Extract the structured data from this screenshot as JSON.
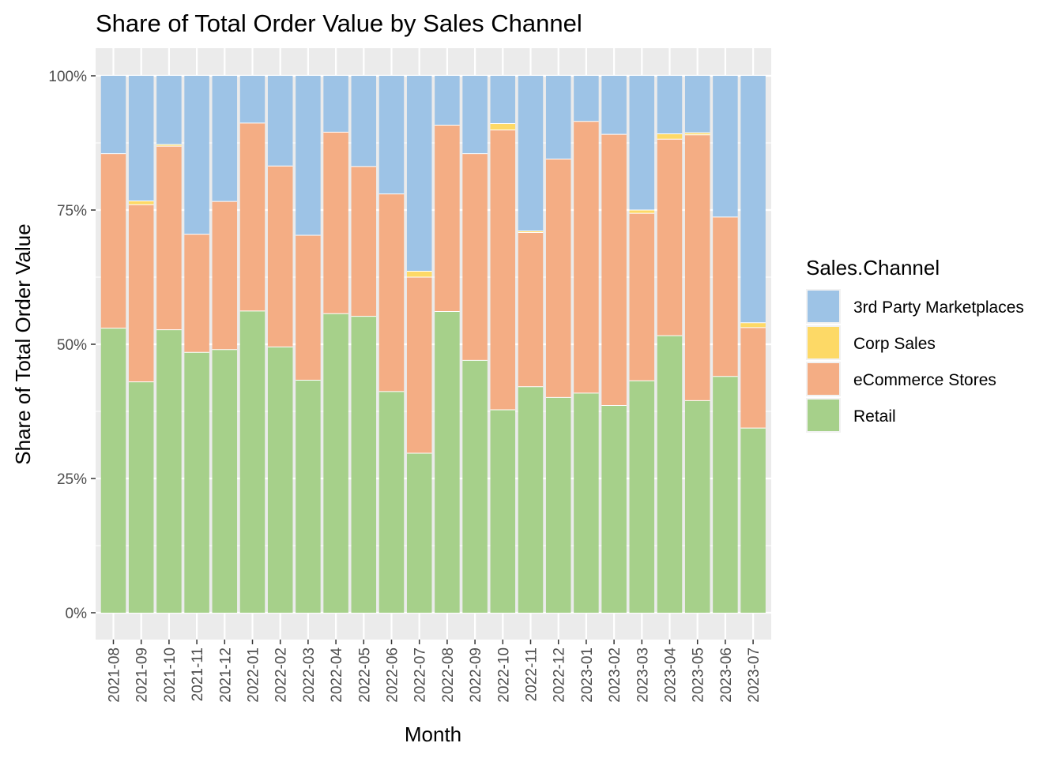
{
  "chart_data": {
    "type": "bar",
    "stacked": "percent",
    "title": "Share of Total Order Value by Sales Channel",
    "xlabel": "Month",
    "ylabel": "Share of Total Order Value",
    "ylim": [
      0,
      1
    ],
    "yticks": [
      "0%",
      "25%",
      "50%",
      "75%",
      "100%"
    ],
    "grid": true,
    "legend": {
      "title": "Sales.Channel",
      "position": "right"
    },
    "categories": [
      "2021-08",
      "2021-09",
      "2021-10",
      "2021-11",
      "2021-12",
      "2022-01",
      "2022-02",
      "2022-03",
      "2022-04",
      "2022-05",
      "2022-06",
      "2022-07",
      "2022-08",
      "2022-09",
      "2022-10",
      "2022-11",
      "2022-12",
      "2023-01",
      "2023-02",
      "2023-03",
      "2023-04",
      "2023-05",
      "2023-06",
      "2023-07"
    ],
    "series": [
      {
        "name": "Retail",
        "color": "#a6d08a",
        "values": [
          0.53,
          0.43,
          0.527,
          0.485,
          0.49,
          0.562,
          0.495,
          0.433,
          0.557,
          0.552,
          0.412,
          0.297,
          0.561,
          0.47,
          0.378,
          0.421,
          0.401,
          0.409,
          0.386,
          0.432,
          0.516,
          0.395,
          0.44,
          0.344
        ]
      },
      {
        "name": "eCommerce Stores",
        "color": "#f4ad84",
        "values": [
          0.325,
          0.33,
          0.342,
          0.22,
          0.276,
          0.35,
          0.337,
          0.27,
          0.338,
          0.279,
          0.368,
          0.328,
          0.347,
          0.385,
          0.521,
          0.287,
          0.444,
          0.506,
          0.505,
          0.312,
          0.366,
          0.495,
          0.297,
          0.187
        ]
      },
      {
        "name": "Corp Sales",
        "color": "#fdd966",
        "values": [
          0,
          0.007,
          0.003,
          0,
          0,
          0,
          0,
          0,
          0,
          0,
          0,
          0.011,
          0,
          0,
          0.012,
          0.003,
          0,
          0,
          0,
          0.006,
          0.01,
          0.004,
          0,
          0.009
        ]
      },
      {
        "name": "3rd Party Marketplaces",
        "color": "#9dc3e6",
        "values": [
          0.145,
          0.233,
          0.128,
          0.295,
          0.234,
          0.088,
          0.168,
          0.297,
          0.105,
          0.169,
          0.22,
          0.364,
          0.092,
          0.145,
          0.089,
          0.289,
          0.155,
          0.085,
          0.109,
          0.25,
          0.108,
          0.106,
          0.263,
          0.46
        ]
      }
    ],
    "legend_order": [
      "3rd Party Marketplaces",
      "Corp Sales",
      "eCommerce Stores",
      "Retail"
    ],
    "panel_background": "#ebebeb",
    "grid_color": "#ffffff"
  }
}
